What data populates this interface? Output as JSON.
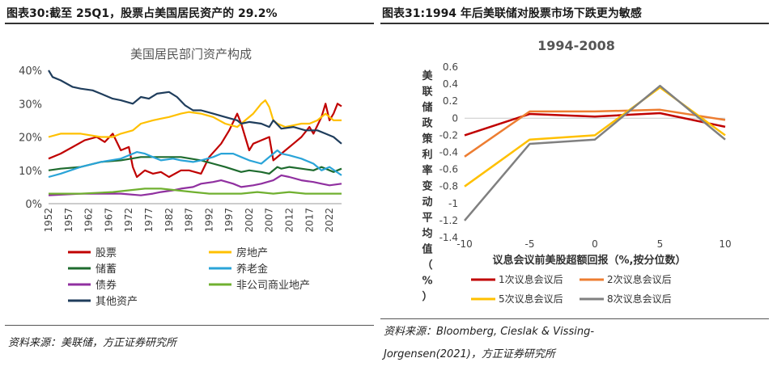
{
  "left": {
    "title": "图表30:截至 25Q1，股票占美国居民资产的 29.2%",
    "source": "资料来源：美联储，方正证券研究所"
  },
  "right": {
    "title": "图表31:1994 年后美联储对股票市场下跌更为敏感",
    "source_line1": "资料来源：Bloomberg, Cieslak & Vissing-",
    "source_line2": "Jorgensen(2021)，方正证券研究所"
  },
  "chart_data": [
    {
      "type": "line",
      "title": "美国居民部门资产构成",
      "ylim": [
        0,
        40
      ],
      "yticks": [
        "0%",
        "10%",
        "20%",
        "30%",
        "40%"
      ],
      "xlim": [
        1952,
        2025
      ],
      "xticks": [
        "1952",
        "1957",
        "1962",
        "1967",
        "1972",
        "1977",
        "1982",
        "1987",
        "1992",
        "1997",
        "2002",
        "2007",
        "2012",
        "2017",
        "2022"
      ],
      "legend_position": "bottom",
      "series": [
        {
          "name": "股票",
          "color": "#c00000",
          "x": [
            1952,
            1955,
            1958,
            1961,
            1964,
            1966,
            1968,
            1970,
            1972,
            1973,
            1974,
            1976,
            1978,
            1980,
            1982,
            1985,
            1987,
            1990,
            1992,
            1995,
            1997,
            1999,
            2000,
            2002,
            2003,
            2005,
            2007,
            2008,
            2009,
            2011,
            2013,
            2015,
            2017,
            2018,
            2020,
            2021,
            2022,
            2023,
            2024,
            2025
          ],
          "y": [
            13.5,
            15,
            17,
            19,
            20,
            18.5,
            21,
            16,
            17,
            11,
            8,
            10,
            9,
            9.5,
            8,
            10,
            10,
            9,
            14,
            18,
            22,
            27,
            24,
            16,
            18,
            19,
            20,
            13,
            14,
            16,
            18,
            20,
            23,
            21,
            26,
            30,
            25,
            27,
            30,
            29.2
          ]
        },
        {
          "name": "房地产",
          "color": "#ffc000",
          "x": [
            1952,
            1955,
            1960,
            1965,
            1968,
            1970,
            1973,
            1975,
            1978,
            1980,
            1982,
            1985,
            1987,
            1990,
            1993,
            1996,
            1999,
            2001,
            2003,
            2005,
            2006,
            2007,
            2008,
            2009,
            2011,
            2013,
            2015,
            2017,
            2019,
            2021,
            2022,
            2023,
            2025
          ],
          "y": [
            20,
            21,
            21,
            20,
            20,
            21,
            22,
            24,
            25,
            25.5,
            26,
            27,
            27.5,
            27,
            26,
            24,
            23,
            25,
            27,
            30,
            31,
            29,
            25,
            24,
            23,
            23.5,
            24,
            24,
            25,
            27,
            26,
            25,
            25
          ]
        },
        {
          "name": "储蓄",
          "color": "#1e6b2e",
          "x": [
            1952,
            1955,
            1960,
            1965,
            1970,
            1975,
            1980,
            1985,
            1990,
            1993,
            1996,
            2000,
            2002,
            2005,
            2007,
            2009,
            2010,
            2012,
            2015,
            2018,
            2020,
            2021,
            2023,
            2025
          ],
          "y": [
            10,
            10.5,
            11,
            12.5,
            13,
            14,
            14,
            14,
            13,
            12,
            11,
            9.5,
            10,
            9.5,
            9,
            11,
            10.5,
            11,
            10.5,
            10,
            11,
            10.5,
            9.5,
            10.5
          ]
        },
        {
          "name": "养老金",
          "color": "#2aa4d8",
          "x": [
            1952,
            1955,
            1960,
            1965,
            1970,
            1974,
            1976,
            1978,
            1980,
            1983,
            1985,
            1988,
            1990,
            1993,
            1995,
            1998,
            2000,
            2002,
            2005,
            2008,
            2009,
            2010,
            2012,
            2015,
            2018,
            2020,
            2022,
            2025
          ],
          "y": [
            8,
            9,
            11,
            12.5,
            13.5,
            15.5,
            15,
            14,
            13,
            13.5,
            13,
            12.5,
            13,
            14,
            15,
            15,
            14,
            13,
            12,
            15,
            16,
            15,
            14.5,
            13.5,
            12,
            10,
            11,
            8.5
          ]
        },
        {
          "name": "债券",
          "color": "#9030a0",
          "x": [
            1952,
            1960,
            1970,
            1975,
            1978,
            1980,
            1983,
            1985,
            1988,
            1990,
            1993,
            1995,
            1998,
            2000,
            2003,
            2005,
            2008,
            2010,
            2012,
            2015,
            2018,
            2020,
            2022,
            2025
          ],
          "y": [
            2.5,
            3,
            3,
            2.5,
            3,
            3.5,
            4,
            4.5,
            5,
            6,
            6.5,
            7,
            6,
            5,
            5.5,
            6,
            7,
            8.5,
            8,
            7,
            6.5,
            6,
            5.5,
            6
          ]
        },
        {
          "name": "非公司商业地产",
          "color": "#70b030",
          "x": [
            1952,
            1960,
            1968,
            1972,
            1976,
            1980,
            1984,
            1988,
            1992,
            1996,
            2000,
            2004,
            2008,
            2012,
            2016,
            2020,
            2025
          ],
          "y": [
            3,
            3,
            3.5,
            4,
            4.5,
            4.5,
            4,
            3.5,
            3,
            3,
            3,
            3.5,
            3,
            3.5,
            3,
            3,
            3
          ]
        },
        {
          "name": "其他资产",
          "color": "#1f3d5c",
          "x": [
            1952,
            1953,
            1955,
            1958,
            1960,
            1963,
            1965,
            1968,
            1970,
            1973,
            1975,
            1977,
            1979,
            1982,
            1984,
            1986,
            1988,
            1990,
            1993,
            1996,
            1999,
            2000,
            2002,
            2005,
            2007,
            2008,
            2010,
            2013,
            2016,
            2019,
            2021,
            2023,
            2025
          ],
          "y": [
            40,
            38,
            37,
            35,
            34.5,
            34,
            33,
            31.5,
            31,
            30,
            32,
            31.5,
            33,
            33.5,
            32,
            29.5,
            28,
            28,
            27,
            26,
            25,
            24,
            24.5,
            24,
            23,
            25,
            22.5,
            23,
            22,
            22,
            21,
            20,
            18
          ]
        }
      ]
    },
    {
      "type": "line",
      "title": "1994-2008",
      "xlabel": "议息会议前美股超额回报（%,按分位数）",
      "ylabel": "美联储政策利率变动平均值（%）",
      "xlim": [
        -10,
        10
      ],
      "ylim": [
        -1.4,
        0.6
      ],
      "xticks": [
        "-10",
        "-5",
        "0",
        "5",
        "10"
      ],
      "yticks": [
        "-1.4",
        "-1.2",
        "-1",
        "-0.8",
        "-0.6",
        "-0.4",
        "-0.2",
        "0",
        "0.2",
        "0.4",
        "0.6"
      ],
      "legend_position": "bottom",
      "series": [
        {
          "name": "1次议息会议后",
          "color": "#c00000",
          "x": [
            -10,
            -5,
            0,
            5,
            10
          ],
          "y": [
            -0.2,
            0.05,
            0.02,
            0.06,
            -0.1
          ]
        },
        {
          "name": "2次议息会议后",
          "color": "#ed7d31",
          "x": [
            -10,
            -5,
            0,
            5,
            10
          ],
          "y": [
            -0.45,
            0.08,
            0.08,
            0.1,
            -0.02
          ]
        },
        {
          "name": "5次议息会议后",
          "color": "#ffc000",
          "x": [
            -10,
            -5,
            0,
            5,
            10
          ],
          "y": [
            -0.8,
            -0.25,
            -0.2,
            0.36,
            -0.2
          ]
        },
        {
          "name": "8次议息会议后",
          "color": "#808080",
          "x": [
            -10,
            -5,
            0,
            5,
            10
          ],
          "y": [
            -1.2,
            -0.3,
            -0.25,
            0.38,
            -0.25
          ]
        }
      ]
    }
  ]
}
